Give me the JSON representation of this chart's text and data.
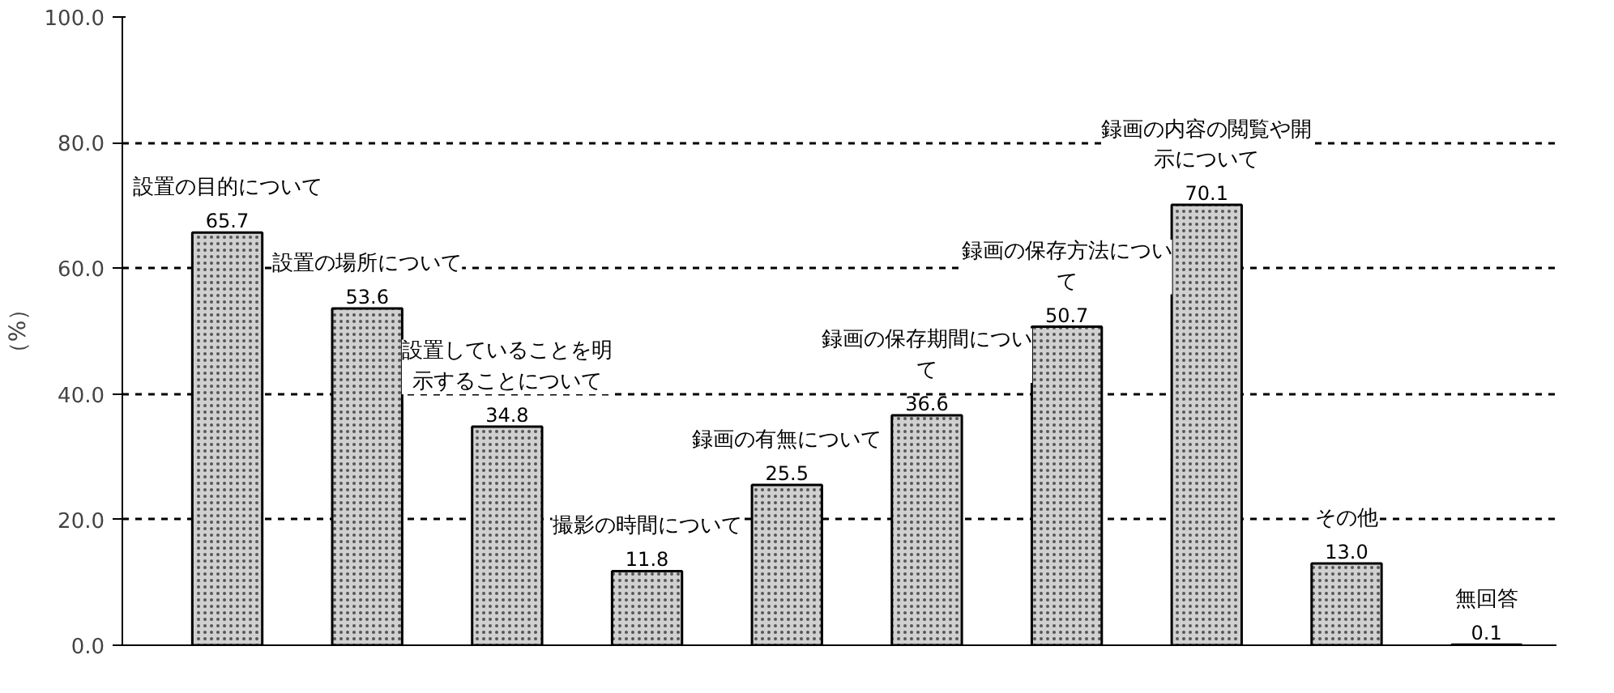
{
  "chart_data": {
    "type": "bar",
    "ylabel": "（%）",
    "categories": [
      "設置の目的について",
      "設置の場所について",
      "設置していることを明示することについて",
      "撮影の時間について",
      "録画の有無について",
      "録画の保存期間について",
      "録画の保存方法について",
      "録画の内容の閲覧や開示について",
      "その他",
      "無回答"
    ],
    "values": [
      65.7,
      53.6,
      34.8,
      11.8,
      25.5,
      36.6,
      50.7,
      70.1,
      13.0,
      0.1
    ],
    "value_labels": [
      "65.7",
      "53.6",
      "34.8",
      "11.8",
      "25.5",
      "36.6",
      "50.7",
      "70.1",
      "13.0",
      "0.1"
    ],
    "color": "#d0d0d0",
    "ylim": [
      0,
      100
    ],
    "yticks": [
      {
        "value": 0,
        "label": "0.0"
      },
      {
        "value": 20,
        "label": "20.0"
      },
      {
        "value": 40,
        "label": "40.0"
      },
      {
        "value": 60,
        "label": "60.0"
      },
      {
        "value": 80,
        "label": "80.0"
      },
      {
        "value": 100,
        "label": "100.0"
      }
    ],
    "grid": "y",
    "tick_labels": "y"
  }
}
